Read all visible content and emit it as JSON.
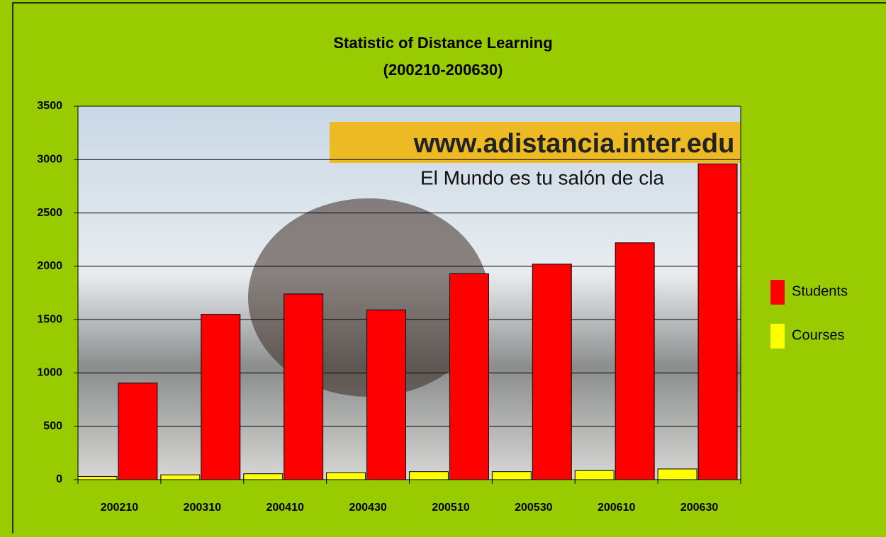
{
  "chart_data": {
    "type": "bar",
    "title": "Statistic of Distance Learning",
    "subtitle": "(200210-200630)",
    "annotations": [
      "www.adistancia.inter.edu",
      "El Mundo es tu salón de cla"
    ],
    "categories": [
      "200210",
      "200310",
      "200410",
      "200430",
      "200510",
      "200530",
      "200610",
      "200630"
    ],
    "series": [
      {
        "name": "Courses",
        "color": "#ffff00",
        "values": [
          30,
          45,
          55,
          65,
          75,
          75,
          85,
          100
        ]
      },
      {
        "name": "Students",
        "color": "#ff0000",
        "values": [
          905,
          1550,
          1740,
          1590,
          1930,
          2020,
          2220,
          2960
        ]
      }
    ],
    "legend_order": [
      "Students",
      "Courses"
    ],
    "ylim": [
      0,
      3500
    ],
    "yticks": [
      0,
      500,
      1000,
      1500,
      2000,
      2500,
      3000,
      3500
    ],
    "grid": true,
    "legend": "right"
  }
}
